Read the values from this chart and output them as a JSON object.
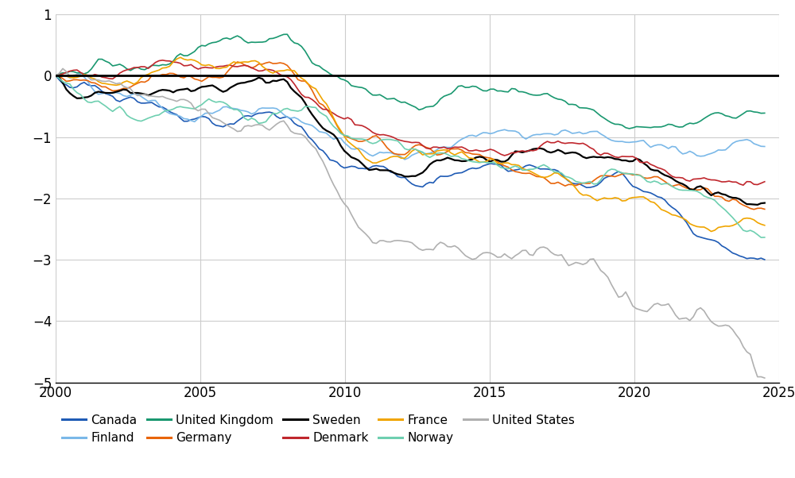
{
  "xlim": [
    2000,
    2025
  ],
  "ylim": [
    -5,
    1
  ],
  "yticks": [
    -5,
    -4,
    -3,
    -2,
    -1,
    0,
    1
  ],
  "xticks": [
    2000,
    2005,
    2010,
    2015,
    2020,
    2025
  ],
  "series": {
    "Canada": {
      "color": "#1f5bb5",
      "lw": 1.2
    },
    "Finland": {
      "color": "#7ab8e8",
      "lw": 1.2
    },
    "United Kingdom": {
      "color": "#1a9870",
      "lw": 1.2
    },
    "Germany": {
      "color": "#e8650a",
      "lw": 1.2
    },
    "Sweden": {
      "color": "#000000",
      "lw": 1.6
    },
    "Denmark": {
      "color": "#c0272d",
      "lw": 1.2
    },
    "France": {
      "color": "#f0a500",
      "lw": 1.2
    },
    "Norway": {
      "color": "#6ecfb0",
      "lw": 1.2
    },
    "United States": {
      "color": "#b0b0b0",
      "lw": 1.2
    }
  },
  "background_color": "#ffffff",
  "grid_color": "#cccccc",
  "hline_y": 0,
  "hline_color": "#000000",
  "hline_lw": 2.0,
  "legend_order": [
    "Canada",
    "Finland",
    "United Kingdom",
    "Germany",
    "Sweden",
    "Denmark",
    "France",
    "Norway",
    "United States"
  ]
}
